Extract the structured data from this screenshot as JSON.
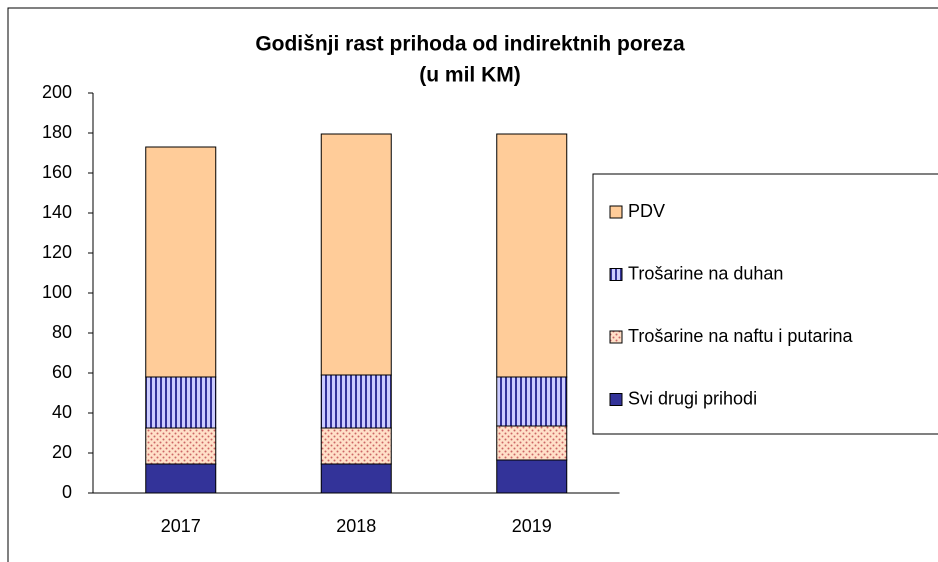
{
  "chart_data": {
    "type": "stacked-bar",
    "title": "Godišnji rast prihoda od indirektnih poreza",
    "subtitle": "(u mil KM)",
    "categories": [
      "2017",
      "2018",
      "2019"
    ],
    "series": [
      {
        "name": "Svi drugi prihodi",
        "color": "#333399",
        "pattern": "solid",
        "values": [
          14.5,
          14.5,
          16.5
        ]
      },
      {
        "name": "Trošarine na naftu i putarina",
        "color": "#cc6666",
        "pattern": "dots",
        "values": [
          18,
          18,
          17
        ]
      },
      {
        "name": "Trošarine na duhan",
        "color": "#333399",
        "pattern": "vertical-lines",
        "values": [
          25.5,
          26.5,
          24.5
        ]
      },
      {
        "name": "PDV",
        "color": "#ffcc99",
        "pattern": "solid",
        "values": [
          115,
          120.5,
          121.5
        ]
      }
    ],
    "ylim": [
      0,
      200
    ],
    "yticks": [
      0,
      20,
      40,
      60,
      80,
      100,
      120,
      140,
      160,
      180,
      200
    ],
    "grid": false,
    "legend": "right"
  }
}
